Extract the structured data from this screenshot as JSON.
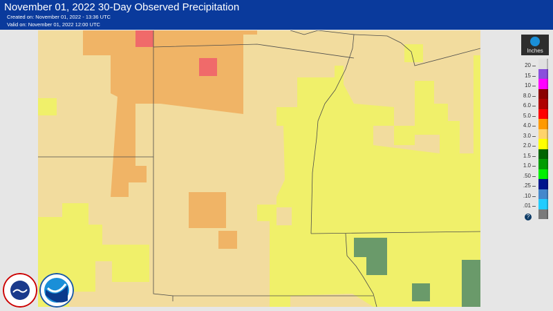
{
  "header": {
    "title": "November 01, 2022 30-Day Observed Precipitation",
    "created": "Created on: November 01, 2022 - 13:36 UTC",
    "valid": "Valid on: November 01, 2022 12:00 UTC"
  },
  "legend": {
    "units": "Inches",
    "help_icon": "question-icon",
    "labels": [
      "20",
      "15",
      "10",
      "8.0",
      "6.0",
      "5.0",
      "4.0",
      "3.0",
      "2.0",
      "1.5",
      "1.0",
      ".50",
      ".25",
      ".10",
      ".01"
    ],
    "colors": [
      "#e0e0e0",
      "#8a4fdc",
      "#ff00ff",
      "#8b0000",
      "#b00000",
      "#ff0000",
      "#ff9900",
      "#ffd36b",
      "#ffff00",
      "#006400",
      "#009c00",
      "#00f000",
      "#00158c",
      "#4488cc",
      "#22ccff",
      "#7a7a7a"
    ]
  },
  "map_colors": {
    "base": "#f2dc9e",
    "yellow": "#f0f06a",
    "orange": "#f0b466",
    "red": "#f06a6a",
    "green": "#6a9a6a",
    "border": "#4a4a4a"
  },
  "logos": {
    "nws": "NATIONAL WEATHER SERVICE",
    "noaa": "NOAA"
  }
}
